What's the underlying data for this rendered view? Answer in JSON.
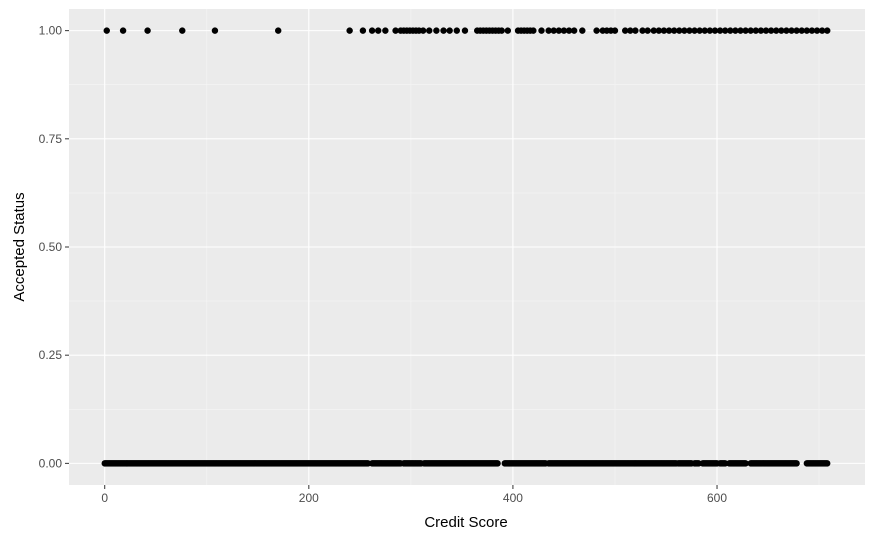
{
  "chart_data": {
    "type": "scatter",
    "title": "",
    "xlabel": "Credit Score",
    "ylabel": "Accepted Status",
    "xlim": [
      -35,
      745
    ],
    "ylim": [
      -0.05,
      1.05
    ],
    "x_ticks": [
      0,
      200,
      400,
      600
    ],
    "x_tick_labels": [
      "0",
      "200",
      "400",
      "600"
    ],
    "y_ticks": [
      0,
      0.25,
      0.5,
      0.75,
      1
    ],
    "y_tick_labels": [
      "0.00",
      "0.25",
      "0.50",
      "0.75",
      "1.00"
    ],
    "grid": true,
    "legend": "none",
    "colors": {
      "panel": "#ebebeb",
      "grid_major": "#ffffff",
      "grid_minor": "#f5f5f5",
      "point": "#000000",
      "tick": "#333333"
    },
    "accepted_1": [
      2,
      18,
      42,
      76,
      108,
      170,
      240,
      253,
      262,
      268,
      275,
      285,
      290,
      293,
      296,
      299,
      302,
      305,
      308,
      312,
      318,
      325,
      332,
      338,
      345,
      353,
      365,
      368,
      371,
      374,
      377,
      380,
      383,
      386,
      389,
      395,
      405,
      408,
      411,
      414,
      417,
      420,
      428,
      435,
      440,
      445,
      450,
      455,
      460,
      468,
      482,
      488,
      492,
      496,
      500,
      510,
      515,
      520,
      527,
      532,
      538,
      543,
      548,
      553,
      558,
      563,
      568,
      573,
      578,
      583,
      588,
      593,
      598,
      603,
      608,
      613,
      618,
      623,
      628,
      633,
      638,
      643,
      648,
      653,
      658,
      663,
      668,
      673,
      678,
      683,
      688,
      693,
      698,
      703,
      708
    ],
    "accepted_0_segments": [
      [
        0,
        258
      ],
      [
        262,
        290
      ],
      [
        293,
        310
      ],
      [
        313,
        385
      ],
      [
        392,
        432
      ],
      [
        435,
        560
      ],
      [
        562,
        575
      ],
      [
        578,
        582
      ],
      [
        586,
        600
      ],
      [
        603,
        608
      ],
      [
        612,
        628
      ],
      [
        633,
        678
      ],
      [
        688,
        708
      ]
    ]
  }
}
